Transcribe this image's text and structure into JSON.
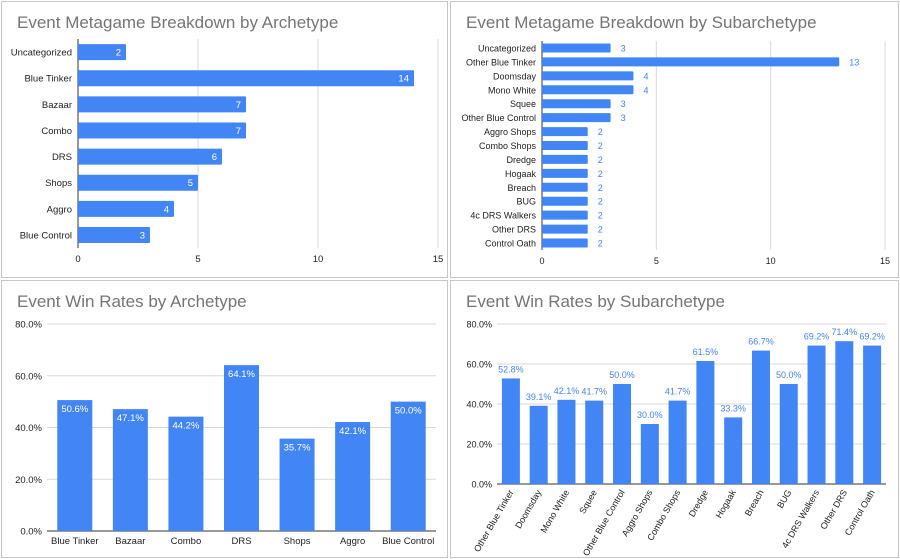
{
  "charts": [
    {
      "title": "Event Metagame Breakdown by Archetype",
      "type": "hbar",
      "categories": [
        "Uncategorized",
        "Blue Tinker",
        "Bazaar",
        "Combo",
        "DRS",
        "Shops",
        "Aggro",
        "Blue Control"
      ],
      "values": [
        2,
        14,
        7,
        7,
        6,
        5,
        4,
        3
      ],
      "xticks": [
        0,
        5,
        10,
        15
      ],
      "xlim": [
        0,
        15
      ],
      "label_inside": true
    },
    {
      "title": "Event Metagame Breakdown by Subarchetype",
      "type": "hbar",
      "categories": [
        "Uncategorized",
        "Other Blue Tinker",
        "Doomsday",
        "Mono White",
        "Squee",
        "Other Blue Control",
        "Aggro Shops",
        "Combo Shops",
        "Dredge",
        "Hogaak",
        "Breach",
        "BUG",
        "4c DRS Walkers",
        "Other DRS",
        "Control Oath"
      ],
      "values": [
        3,
        13,
        4,
        4,
        3,
        3,
        2,
        2,
        2,
        2,
        2,
        2,
        2,
        2,
        2
      ],
      "xticks": [
        0,
        5,
        10,
        15
      ],
      "xlim": [
        0,
        15
      ],
      "label_inside": false
    },
    {
      "title": "Event Win Rates by Archetype",
      "type": "vbar",
      "categories": [
        "Blue Tinker",
        "Bazaar",
        "Combo",
        "DRS",
        "Shops",
        "Aggro",
        "Blue Control"
      ],
      "values": [
        50.6,
        47.1,
        44.2,
        64.1,
        35.7,
        42.1,
        50.0
      ],
      "labels": [
        "50.6%",
        "47.1%",
        "44.2%",
        "64.1%",
        "35.7%",
        "42.1%",
        "50.0%"
      ],
      "yticks": [
        "0.0%",
        "20.0%",
        "40.0%",
        "60.0%",
        "80.0%"
      ],
      "ylim": [
        0,
        80
      ],
      "label_inside": true,
      "rotate_x": false
    },
    {
      "title": "Event Win Rates by Subarchetype",
      "type": "vbar",
      "categories": [
        "Other Blue Tinker",
        "Doomsday",
        "Mono White",
        "Squee",
        "Other Blue Control",
        "Aggro Shops",
        "Combo Shops",
        "Dredge",
        "Hogaak",
        "Breach",
        "BUG",
        "4c DRS Walkers",
        "Other DRS",
        "Control Oath"
      ],
      "values": [
        52.8,
        39.1,
        42.1,
        41.7,
        50.0,
        30.0,
        41.7,
        61.5,
        33.3,
        66.7,
        50.0,
        69.2,
        71.4,
        69.2
      ],
      "labels": [
        "52.8%",
        "39.1%",
        "42.1%",
        "41.7%",
        "50.0%",
        "30.0%",
        "41.7%",
        "61.5%",
        "33.3%",
        "66.7%",
        "50.0%",
        "69.2%",
        "71.4%",
        "69.2%"
      ],
      "yticks": [
        "0.0%",
        "20.0%",
        "40.0%",
        "60.0%",
        "80.0%"
      ],
      "ylim": [
        0,
        80
      ],
      "label_inside": false,
      "rotate_x": true
    }
  ],
  "colors": {
    "bar": "#4285f4",
    "grid": "#d9d9d9",
    "axis": "#333333",
    "label_out": "#4285f4",
    "label_in": "#ffffff"
  }
}
